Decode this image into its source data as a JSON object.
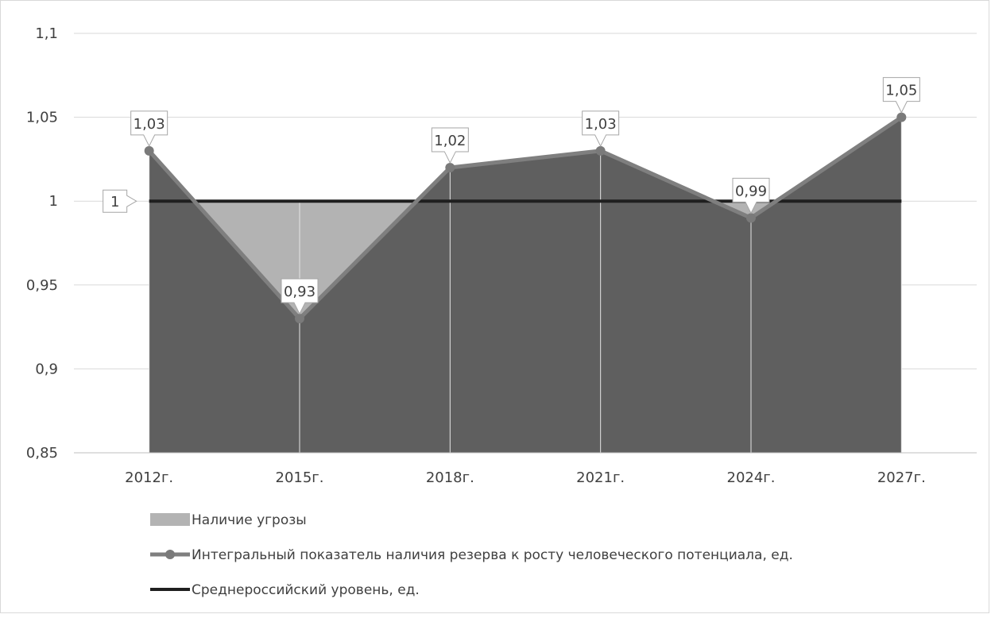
{
  "chart_data": {
    "type": "area",
    "categories": [
      "2012г.",
      "2015г.",
      "2018г.",
      "2021г.",
      "2024г.",
      "2027г."
    ],
    "series": [
      {
        "name": "Наличие угрозы",
        "kind": "area",
        "color": "#b3b3b3",
        "values": [
          1.0,
          1.0,
          1.0,
          1.0,
          1.0,
          1.0
        ]
      },
      {
        "name": "Интегральный показатель наличия резерва к росту человеческого потенциала, ед.",
        "kind": "area-line",
        "color": "#7f7f7f",
        "fill": "#5f5f5f",
        "values": [
          1.03,
          0.93,
          1.02,
          1.03,
          0.99,
          1.05
        ],
        "labels": [
          "1,03",
          "0,93",
          "1,02",
          "1,03",
          "0,99",
          "1,05"
        ]
      },
      {
        "name": "Среднероссийский уровень, ед.",
        "kind": "line",
        "color": "#1f1f1f",
        "values": [
          1.0,
          1.0,
          1.0,
          1.0,
          1.0,
          1.0
        ],
        "labels": [
          "1"
        ]
      }
    ],
    "y_ticks": [
      "1,1",
      "1,05",
      "1",
      "0,95",
      "0,9",
      "0,85"
    ],
    "y_tick_values": [
      1.1,
      1.05,
      1.0,
      0.95,
      0.9,
      0.85
    ],
    "ylim": [
      0.85,
      1.1
    ],
    "grid": true,
    "legend_position": "bottom-left"
  }
}
